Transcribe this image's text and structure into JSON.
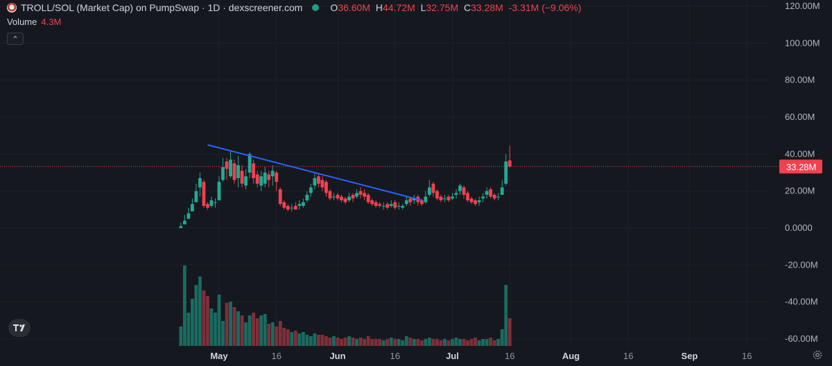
{
  "header": {
    "title": "TROLL/SOL (Market Cap) on PumpSwap · 1D · dexscreener.com",
    "ohlc": {
      "o_label": "O",
      "o": "36.60M",
      "h_label": "H",
      "h": "44.72M",
      "l_label": "L",
      "l": "32.75M",
      "c_label": "C",
      "c": "33.28M",
      "change": "-3.31M (−9.06%)"
    },
    "volume_label": "Volume",
    "volume_value": "4.3M",
    "collapse_glyph": "⌃"
  },
  "icons": {
    "symbol": "troll-face-icon",
    "status": "live-status-dot-icon",
    "logo": "tradingview-logo-icon",
    "settings": "gear-icon",
    "collapse": "chevron-up-icon"
  },
  "colors": {
    "background": "#16181f",
    "up": "#22ab94",
    "down": "#f0414f",
    "vol_up": "#1a6b60",
    "vol_down": "#7e3039",
    "trendline": "#2962ff",
    "price_line": "#f0414f"
  },
  "chart_data": {
    "type": "candlestick",
    "y_axis": {
      "ticks": [
        "120.00M",
        "100.00M",
        "80.00M",
        "60.00M",
        "40.00M",
        "20.00M",
        "0.0000",
        "-20.00M",
        "-40.00M",
        "-60.00M"
      ],
      "tick_values": [
        120,
        100,
        80,
        60,
        40,
        20,
        0,
        -20,
        -40,
        -60
      ],
      "unit": "M",
      "range": [
        -62,
        122
      ]
    },
    "x_axis": {
      "ticks": [
        "May",
        "16",
        "Jun",
        "16",
        "Jul",
        "16",
        "Aug",
        "16",
        "Sep",
        "16"
      ],
      "tick_dates": [
        "2025-05-01",
        "2025-05-16",
        "2025-06-01",
        "2025-06-16",
        "2025-07-01",
        "2025-07-16",
        "2025-08-01",
        "2025-08-16",
        "2025-09-01",
        "2025-09-16"
      ],
      "bold_ticks": [
        "May",
        "Jun",
        "Jul",
        "Aug",
        "Sep"
      ]
    },
    "first_date": "2025-04-21",
    "last_price": {
      "value": 33.28,
      "label": "33.28M"
    },
    "candles": [
      [
        0,
        1,
        3,
        0,
        2
      ],
      [
        2,
        4,
        7,
        2,
        5
      ],
      [
        5,
        8,
        11,
        5,
        9
      ],
      [
        9,
        13,
        16,
        9,
        14
      ],
      [
        14,
        20,
        24,
        14,
        22
      ],
      [
        22,
        27,
        30,
        17,
        25
      ],
      [
        25,
        12,
        26,
        11,
        13
      ],
      [
        13,
        11,
        14,
        10,
        12
      ],
      [
        12,
        15,
        17,
        11,
        14
      ],
      [
        14,
        14,
        16,
        11,
        15
      ],
      [
        15,
        25,
        28,
        15,
        26
      ],
      [
        26,
        33,
        38,
        25,
        36
      ],
      [
        36,
        32,
        38,
        26,
        28
      ],
      [
        28,
        37,
        42,
        27,
        35
      ],
      [
        35,
        26,
        37,
        24,
        27
      ],
      [
        27,
        34,
        39,
        22,
        31
      ],
      [
        31,
        24,
        34,
        22,
        23
      ],
      [
        23,
        28,
        32,
        21,
        30
      ],
      [
        30,
        40,
        41,
        27,
        35
      ],
      [
        35,
        27,
        37,
        24,
        29
      ],
      [
        29,
        24,
        31,
        22,
        23
      ],
      [
        23,
        28,
        31,
        20,
        24
      ],
      [
        24,
        30,
        33,
        22,
        29
      ],
      [
        29,
        26,
        31,
        22,
        28
      ],
      [
        28,
        31,
        34,
        23,
        30
      ],
      [
        30,
        25,
        31,
        20,
        21
      ],
      [
        21,
        13,
        22,
        12,
        14
      ],
      [
        14,
        11,
        15,
        10,
        12
      ],
      [
        12,
        10,
        13,
        9,
        11
      ],
      [
        11,
        11,
        13,
        9,
        12
      ],
      [
        12,
        10,
        14,
        10,
        12
      ],
      [
        12,
        13,
        15,
        10,
        12
      ],
      [
        12,
        14,
        16,
        11,
        15
      ],
      [
        15,
        18,
        20,
        14,
        19
      ],
      [
        19,
        22,
        24,
        17,
        23
      ],
      [
        23,
        27,
        30,
        21,
        28
      ],
      [
        28,
        24,
        29,
        22,
        26
      ],
      [
        26,
        22,
        28,
        20,
        25
      ],
      [
        25,
        19,
        26,
        17,
        20
      ],
      [
        20,
        16,
        21,
        15,
        17
      ],
      [
        17,
        17,
        19,
        15,
        18
      ],
      [
        18,
        16,
        19,
        15,
        17
      ],
      [
        17,
        15,
        18,
        14,
        16
      ],
      [
        16,
        14,
        17,
        13,
        15
      ],
      [
        15,
        17,
        19,
        14,
        18
      ],
      [
        18,
        16,
        19,
        14,
        17
      ],
      [
        17,
        19,
        21,
        16,
        20
      ],
      [
        20,
        18,
        22,
        16,
        19
      ],
      [
        19,
        17,
        21,
        15,
        18
      ],
      [
        18,
        14,
        19,
        13,
        15
      ],
      [
        15,
        13,
        16,
        12,
        14
      ],
      [
        14,
        12,
        15,
        11,
        13
      ],
      [
        13,
        12,
        14,
        11,
        12
      ],
      [
        12,
        12,
        14,
        10,
        13
      ],
      [
        13,
        11,
        14,
        10,
        12
      ],
      [
        12,
        13,
        15,
        11,
        14
      ],
      [
        14,
        11,
        15,
        10,
        12
      ],
      [
        12,
        12,
        14,
        10,
        11
      ],
      [
        11,
        12,
        13,
        10,
        13
      ],
      [
        13,
        15,
        17,
        12,
        16
      ],
      [
        16,
        14,
        17,
        12,
        15
      ],
      [
        15,
        16,
        18,
        13,
        17
      ],
      [
        17,
        14,
        18,
        12,
        15
      ],
      [
        15,
        13,
        16,
        12,
        14
      ],
      [
        14,
        17,
        20,
        13,
        18
      ],
      [
        18,
        22,
        26,
        17,
        24
      ],
      [
        24,
        19,
        25,
        17,
        20
      ],
      [
        20,
        16,
        21,
        15,
        17
      ],
      [
        17,
        15,
        18,
        14,
        16
      ],
      [
        16,
        16,
        18,
        14,
        17
      ],
      [
        17,
        15,
        18,
        14,
        16
      ],
      [
        16,
        17,
        19,
        15,
        18
      ],
      [
        18,
        19,
        21,
        16,
        20
      ],
      [
        20,
        23,
        24,
        18,
        22
      ],
      [
        22,
        18,
        23,
        16,
        19
      ],
      [
        19,
        15,
        20,
        14,
        16
      ],
      [
        16,
        14,
        17,
        13,
        15
      ],
      [
        15,
        13,
        16,
        12,
        14
      ],
      [
        14,
        15,
        17,
        12,
        16
      ],
      [
        16,
        17,
        19,
        14,
        18
      ],
      [
        18,
        20,
        22,
        16,
        21
      ],
      [
        21,
        17,
        22,
        16,
        18
      ],
      [
        18,
        16,
        19,
        15,
        17
      ],
      [
        17,
        17,
        19,
        15,
        18
      ],
      [
        18,
        22,
        26,
        21,
        24
      ],
      [
        24,
        36,
        40,
        23,
        34
      ],
      [
        36.6,
        33.28,
        44.72,
        32.75,
        33.28
      ]
    ],
    "candle_format": [
      "open",
      "close",
      "high",
      "low",
      "ignored"
    ],
    "volume": [
      14,
      58,
      24,
      34,
      44,
      50,
      40,
      36,
      27,
      24,
      37,
      18,
      31,
      32,
      28,
      25,
      22,
      17,
      22,
      24,
      20,
      22,
      23,
      16,
      17,
      14,
      18,
      13,
      12,
      10,
      11,
      9,
      10,
      8,
      7,
      9,
      8,
      8,
      7,
      6,
      7,
      6,
      5,
      6,
      7,
      6,
      5,
      6,
      5,
      7,
      5,
      5,
      5,
      4,
      5,
      6,
      5,
      5,
      4,
      7,
      6,
      5,
      5,
      4,
      5,
      6,
      5,
      5,
      4,
      5,
      4,
      5,
      6,
      5,
      5,
      4,
      5,
      6,
      4,
      5,
      5,
      6,
      4,
      5,
      12,
      44,
      20
    ],
    "volume_unit": "relative",
    "trendline": {
      "start": {
        "date": "2025-04-28",
        "value": 45
      },
      "end": {
        "date": "2025-06-23",
        "value": 15
      }
    }
  }
}
